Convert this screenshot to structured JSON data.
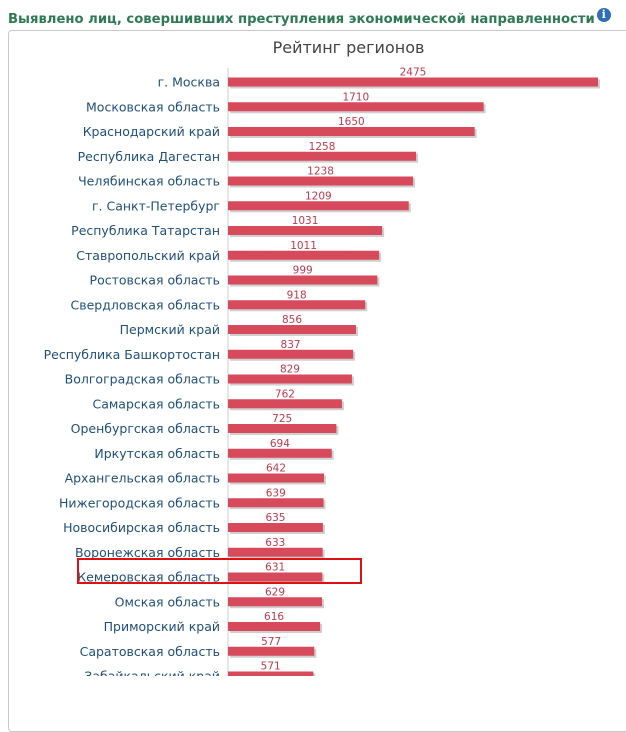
{
  "header": {
    "title": "Выявлено лиц, совершивших преступления экономической направленности",
    "info_icon": "info-icon"
  },
  "colors": {
    "bar": "#d64a5c",
    "bar_shadow": "#cfcfcf",
    "header_text": "#2e7a55",
    "category_text": "#1f4f7a",
    "value_text": "#c0394a",
    "highlight": "#e01010"
  },
  "chart_data": {
    "type": "bar",
    "orientation": "horizontal",
    "title": "Рейтинг регионов",
    "xlabel": "",
    "ylabel": "",
    "categories": [
      "г. Москва",
      "Московская область",
      "Краснодарский край",
      "Республика Дагестан",
      "Челябинская область",
      "г. Санкт-Петербург",
      "Республика Татарстан",
      "Ставропольский край",
      "Ростовская область",
      "Свердловская область",
      "Пермский край",
      "Республика Башкортостан",
      "Волгоградская область",
      "Самарская область",
      "Оренбургская область",
      "Иркутская область",
      "Архангельская область",
      "Нижегородская область",
      "Новосибирская область",
      "Воронежская область",
      "Кемеровская область",
      "Омская область",
      "Приморский край",
      "Саратовская область",
      "Забайкальский край"
    ],
    "values": [
      2475,
      1710,
      1650,
      1258,
      1238,
      1209,
      1031,
      1011,
      999,
      918,
      856,
      837,
      829,
      762,
      725,
      694,
      642,
      639,
      635,
      633,
      631,
      629,
      616,
      577,
      571
    ],
    "highlighted_category": "Кемеровская область",
    "grid": false,
    "legend": "none"
  }
}
